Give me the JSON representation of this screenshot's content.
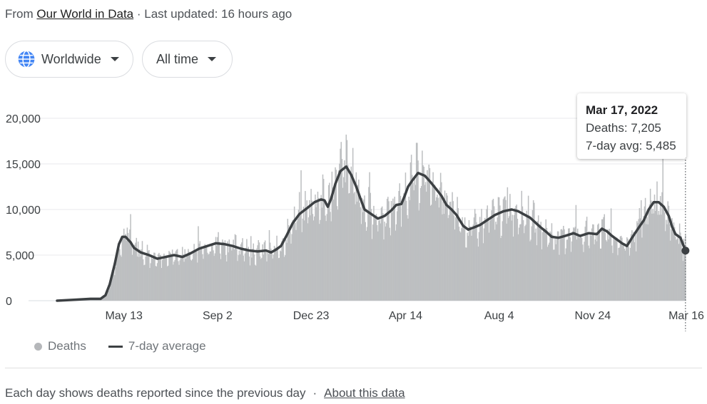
{
  "source": {
    "prefix": "From",
    "link_text": "Our World in Data",
    "updated": "· Last updated: 16 hours ago"
  },
  "filters": {
    "region": "Worldwide",
    "time": "All time"
  },
  "tooltip": {
    "date": "Mar 17, 2022",
    "deaths": "Deaths: 7,205",
    "avg": "7-day avg: 5,485"
  },
  "legend": {
    "deaths": "Deaths",
    "avg": "7-day average"
  },
  "footer": {
    "note": "Each day shows deaths reported since the previous day",
    "separator": "·",
    "link": "About this data"
  },
  "colors": {
    "bars": "#bdbfc1",
    "line": "#3c4043",
    "grid": "#e8eaed"
  },
  "chart_data": {
    "type": "bar",
    "y_ticks": [
      "20,000",
      "15,000",
      "10,000",
      "5,000",
      "0"
    ],
    "y_tick_values": [
      20000,
      15000,
      10000,
      5000,
      0
    ],
    "x_ticks": [
      "May 13",
      "Sep 2",
      "Dec 23",
      "Apr 14",
      "Aug 4",
      "Nov 24",
      "Mar 16"
    ],
    "x_tick_days": [
      80,
      192,
      304,
      417,
      529,
      641,
      753
    ],
    "ylim": [
      0,
      20000
    ],
    "x_start": "Jan 22, 2020",
    "x_end": "Mar 17, 2022",
    "series": [
      {
        "name": "7-day average",
        "points": [
          [
            0,
            0
          ],
          [
            20,
            100
          ],
          [
            40,
            200
          ],
          [
            52,
            200
          ],
          [
            58,
            600
          ],
          [
            63,
            1800
          ],
          [
            69,
            4000
          ],
          [
            74,
            6200
          ],
          [
            78,
            7000
          ],
          [
            82,
            7000
          ],
          [
            88,
            6400
          ],
          [
            92,
            5800
          ],
          [
            100,
            5300
          ],
          [
            110,
            5000
          ],
          [
            120,
            4600
          ],
          [
            130,
            4800
          ],
          [
            140,
            5000
          ],
          [
            150,
            4800
          ],
          [
            160,
            5200
          ],
          [
            170,
            5700
          ],
          [
            180,
            6000
          ],
          [
            190,
            6300
          ],
          [
            200,
            6200
          ],
          [
            210,
            6000
          ],
          [
            220,
            5700
          ],
          [
            230,
            5500
          ],
          [
            240,
            5400
          ],
          [
            250,
            5500
          ],
          [
            256,
            5300
          ],
          [
            262,
            5600
          ],
          [
            268,
            6000
          ],
          [
            275,
            7200
          ],
          [
            282,
            8500
          ],
          [
            290,
            9500
          ],
          [
            300,
            10200
          ],
          [
            308,
            10800
          ],
          [
            316,
            11100
          ],
          [
            320,
            11000
          ],
          [
            324,
            10300
          ],
          [
            328,
            11200
          ],
          [
            333,
            12800
          ],
          [
            339,
            14200
          ],
          [
            346,
            14700
          ],
          [
            352,
            13800
          ],
          [
            358,
            12500
          ],
          [
            363,
            11200
          ],
          [
            368,
            10000
          ],
          [
            376,
            9500
          ],
          [
            384,
            9000
          ],
          [
            392,
            9300
          ],
          [
            400,
            9900
          ],
          [
            406,
            10500
          ],
          [
            412,
            10600
          ],
          [
            416,
            11500
          ],
          [
            420,
            12500
          ],
          [
            426,
            13300
          ],
          [
            432,
            14000
          ],
          [
            440,
            13700
          ],
          [
            446,
            13100
          ],
          [
            454,
            12200
          ],
          [
            460,
            11500
          ],
          [
            466,
            10500
          ],
          [
            472,
            10000
          ],
          [
            478,
            9400
          ],
          [
            486,
            8200
          ],
          [
            492,
            7800
          ],
          [
            498,
            8000
          ],
          [
            506,
            8300
          ],
          [
            514,
            8800
          ],
          [
            524,
            9400
          ],
          [
            534,
            9800
          ],
          [
            544,
            10000
          ],
          [
            552,
            9800
          ],
          [
            560,
            9400
          ],
          [
            566,
            9100
          ],
          [
            572,
            8600
          ],
          [
            578,
            8100
          ],
          [
            586,
            7500
          ],
          [
            592,
            7000
          ],
          [
            600,
            6900
          ],
          [
            608,
            7100
          ],
          [
            618,
            7400
          ],
          [
            626,
            7100
          ],
          [
            636,
            7400
          ],
          [
            646,
            7300
          ],
          [
            652,
            7900
          ],
          [
            658,
            7600
          ],
          [
            664,
            7100
          ],
          [
            670,
            6700
          ],
          [
            676,
            6300
          ],
          [
            682,
            6000
          ],
          [
            688,
            6900
          ],
          [
            696,
            8000
          ],
          [
            702,
            8800
          ],
          [
            708,
            10000
          ],
          [
            714,
            10800
          ],
          [
            720,
            10800
          ],
          [
            726,
            10300
          ],
          [
            732,
            9300
          ],
          [
            736,
            8100
          ],
          [
            740,
            7300
          ],
          [
            746,
            6900
          ],
          [
            752,
            5485
          ]
        ]
      }
    ],
    "highlight": {
      "day": 752,
      "value": 5485
    }
  }
}
